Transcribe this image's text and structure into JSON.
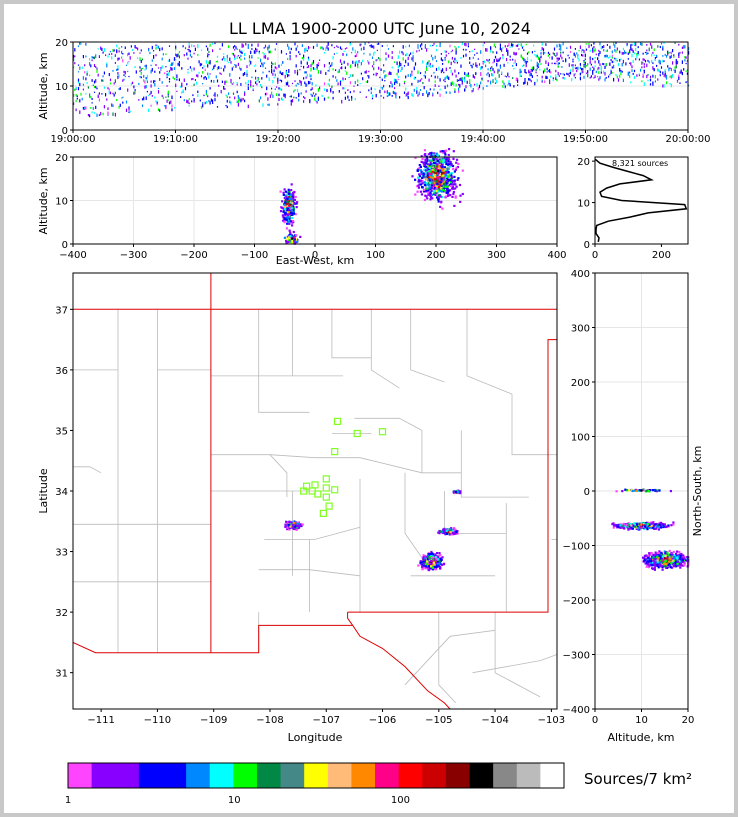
{
  "title": "LL LMA 1900-2000 UTC June 10, 2024",
  "colors": {
    "frame": "#c8c8c8",
    "state_border": "#dd0000",
    "county_border": "#bbbbbb",
    "station_marker": "#80ff20",
    "histogram_line": "#000000"
  },
  "colorbar": {
    "label": "Sources/7 km²",
    "tick_labels": [
      "1",
      "10",
      "100"
    ],
    "tick_values": [
      1,
      10,
      100
    ],
    "range": [
      1,
      300
    ],
    "colors": [
      "#ff44ff",
      "#8800ff",
      "#8800ff",
      "#0000ff",
      "#0000ff",
      "#0088ff",
      "#00ffff",
      "#00ff00",
      "#008844",
      "#448888",
      "#ffff00",
      "#ffbb77",
      "#ff8800",
      "#ff0088",
      "#ff0000",
      "#cc0000",
      "#880000",
      "#000000",
      "#888888",
      "#bbbbbb",
      "#ffffff"
    ]
  },
  "chart_data": [
    {
      "id": "time-height",
      "type": "scatter",
      "xlabel": "",
      "ylabel": "Altitude, km",
      "xlim": [
        "19:00:00",
        "20:00:00"
      ],
      "ylim": [
        0,
        20
      ],
      "x_tick_labels": [
        "19:00:00",
        "19:10:00",
        "19:20:00",
        "19:30:00",
        "19:40:00",
        "19:50:00",
        "20:00:00"
      ],
      "y_tick_labels": [
        "0",
        "10",
        "20"
      ],
      "y_tick_values": [
        0,
        10,
        20
      ],
      "grid": true,
      "description_points": [
        {
          "t_min": 1,
          "alt_lo": 3,
          "alt_hi": 19
        },
        {
          "t_min": 10,
          "alt_lo": 5,
          "alt_hi": 19
        },
        {
          "t_min": 20,
          "alt_lo": 6,
          "alt_hi": 19
        },
        {
          "t_min": 35,
          "alt_lo": 8,
          "alt_hi": 19
        },
        {
          "t_min": 50,
          "alt_lo": 12,
          "alt_hi": 19
        },
        {
          "t_min": 59,
          "alt_lo": 10,
          "alt_hi": 19
        }
      ]
    },
    {
      "id": "ew-altitude",
      "type": "heatmap",
      "xlabel": "East-West, km",
      "ylabel": "Altitude, km",
      "xlim": [
        -400,
        400
      ],
      "ylim": [
        0,
        20
      ],
      "x_tick_labels": [
        "−400",
        "−300",
        "−200",
        "−100",
        "0",
        "100",
        "200",
        "300",
        "400"
      ],
      "x_tick_values": [
        -400,
        -300,
        -200,
        -100,
        0,
        100,
        200,
        300,
        400
      ],
      "y_tick_labels": [
        "0",
        "10",
        "20"
      ],
      "y_tick_values": [
        0,
        10,
        20
      ],
      "grid": true,
      "clusters": [
        {
          "ew": -45,
          "alt": 9,
          "ew_spread": 8,
          "alt_spread": 3
        },
        {
          "ew": -40,
          "alt": 1.5,
          "ew_spread": 8,
          "alt_spread": 1
        },
        {
          "ew": 200,
          "alt": 16,
          "ew_spread": 22,
          "alt_spread": 4
        }
      ]
    },
    {
      "id": "altitude-histogram",
      "type": "line",
      "annotation": "8,321 sources",
      "xlim": [
        0,
        280
      ],
      "ylim": [
        0,
        21
      ],
      "x_tick_labels": [
        "0",
        "200"
      ],
      "x_tick_values": [
        0,
        200
      ],
      "y_tick_labels": [
        "0",
        "10",
        "20"
      ],
      "y_tick_values": [
        0,
        10,
        20
      ],
      "series": [
        {
          "alt": [
            0.5,
            1.5,
            2.5,
            3.5,
            4.5,
            5.5,
            6.5,
            7.5,
            8.5,
            9.5,
            10.5,
            11.5,
            12.5,
            13.5,
            14.5,
            15.5,
            16.5,
            17.5,
            18.5,
            19.5,
            20.5
          ],
          "count": [
            10,
            12,
            3,
            3,
            5,
            40,
            105,
            160,
            275,
            270,
            80,
            20,
            15,
            35,
            75,
            170,
            145,
            100,
            55,
            15,
            0
          ]
        }
      ]
    },
    {
      "id": "plan-view",
      "type": "heatmap",
      "xlabel": "Longitude",
      "ylabel": "Latitude",
      "xlim": [
        -111.5,
        -102.9
      ],
      "ylim": [
        30.4,
        37.6
      ],
      "x_tick_labels": [
        "−111",
        "−110",
        "−109",
        "−108",
        "−107",
        "−106",
        "−105",
        "−104",
        "−103"
      ],
      "x_tick_values": [
        -111,
        -110,
        -109,
        -108,
        -107,
        -106,
        -105,
        -104,
        -103
      ],
      "y_tick_labels": [
        "31",
        "32",
        "33",
        "34",
        "35",
        "36",
        "37"
      ],
      "y_tick_values": [
        31,
        32,
        33,
        34,
        35,
        36,
        37
      ],
      "stations": [
        {
          "lon": -106.8,
          "lat": 35.15
        },
        {
          "lon": -106.45,
          "lat": 34.95
        },
        {
          "lon": -106.0,
          "lat": 34.98
        },
        {
          "lon": -106.85,
          "lat": 34.65
        },
        {
          "lon": -107.0,
          "lat": 34.2
        },
        {
          "lon": -107.2,
          "lat": 34.1
        },
        {
          "lon": -107.0,
          "lat": 34.05
        },
        {
          "lon": -107.25,
          "lat": 34.0
        },
        {
          "lon": -107.4,
          "lat": 34.0
        },
        {
          "lon": -107.15,
          "lat": 33.95
        },
        {
          "lon": -107.0,
          "lat": 33.9
        },
        {
          "lon": -106.85,
          "lat": 34.02
        },
        {
          "lon": -106.95,
          "lat": 33.75
        },
        {
          "lon": -107.05,
          "lat": 33.63
        },
        {
          "lon": -107.35,
          "lat": 34.08
        }
      ],
      "clusters": [
        {
          "lon": -107.6,
          "lat": 33.45,
          "lon_spread": 0.18,
          "lat_spread": 0.08
        },
        {
          "lon": -104.85,
          "lat": 33.35,
          "lon_spread": 0.2,
          "lat_spread": 0.06
        },
        {
          "lon": -105.15,
          "lat": 32.85,
          "lon_spread": 0.25,
          "lat_spread": 0.18
        },
        {
          "lon": -104.7,
          "lat": 34.0,
          "lon_spread": 0.1,
          "lat_spread": 0.03
        }
      ]
    },
    {
      "id": "ns-altitude",
      "type": "heatmap",
      "xlabel": "Altitude, km",
      "ylabel": "North-South, km",
      "xlim": [
        0,
        20
      ],
      "ylim": [
        -400,
        400
      ],
      "x_tick_labels": [
        "0",
        "10",
        "20"
      ],
      "x_tick_values": [
        0,
        10,
        20
      ],
      "y_tick_labels": [
        "−400",
        "−300",
        "−200",
        "−100",
        "0",
        "100",
        "200",
        "300",
        "400"
      ],
      "y_tick_values": [
        -400,
        -300,
        -200,
        -100,
        0,
        100,
        200,
        300,
        400
      ],
      "grid": true,
      "clusters": [
        {
          "alt": 10,
          "ns": -62,
          "alt_spread": 5,
          "ns_spread": 5
        },
        {
          "alt": 15,
          "ns": -125,
          "alt_spread": 4,
          "ns_spread": 12
        },
        {
          "alt": 10,
          "ns": 3,
          "alt_spread": 5,
          "ns_spread": 2
        }
      ]
    }
  ]
}
